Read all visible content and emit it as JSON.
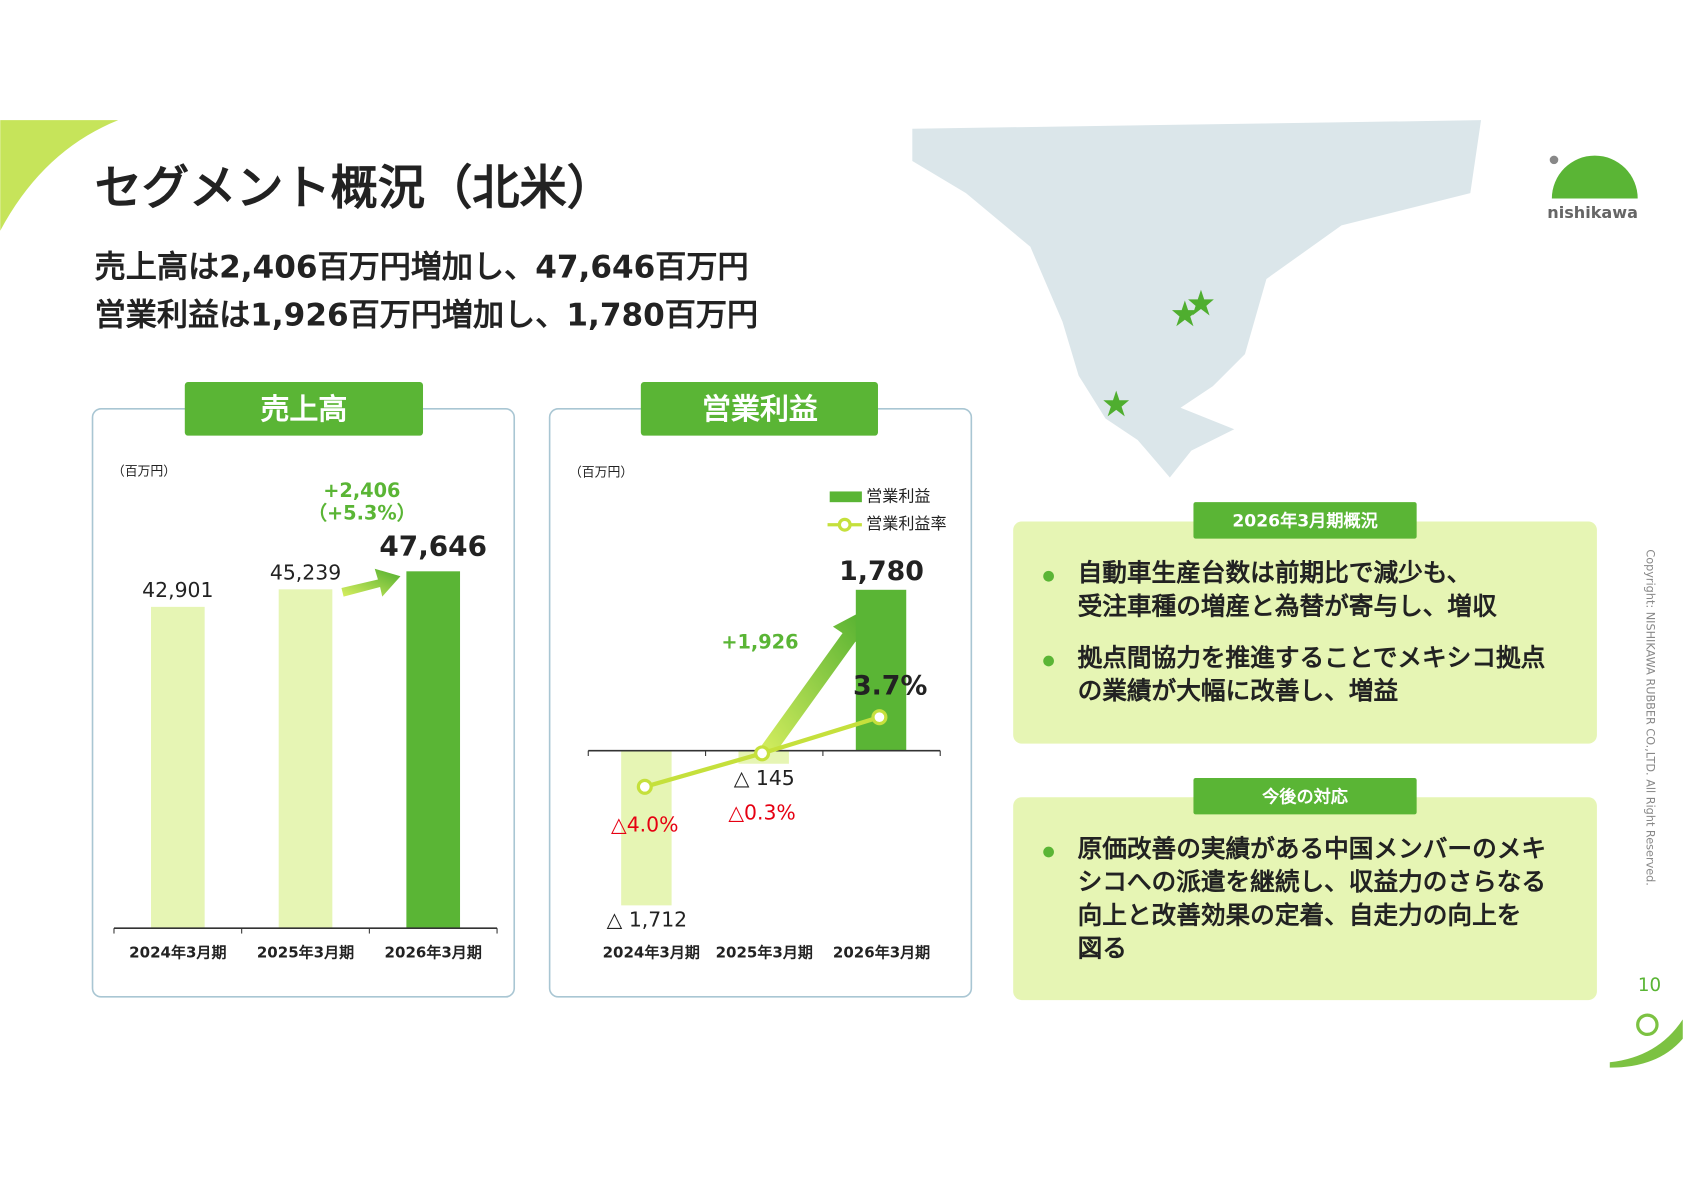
{
  "slide": {
    "title": "セグメント概況（北米）",
    "subtitle": [
      "売上高は2,406百万円増加し、47,646百万円",
      "営業利益は1,926百万円増加し、1,780百万円"
    ],
    "logo": "nishikawa",
    "copyright": "Copyright: NISHIKAWA RUBBER CO.,LTD. All Right Reserved.",
    "page_number": "10"
  },
  "panels": [
    {
      "header": "2026年3月期概況",
      "bullets": [
        [
          "自動車生産台数は前期比で減少も、",
          "受注車種の増産と為替が寄与し、増収"
        ],
        [
          "拠点間協力を推進することでメキシコ拠点",
          "の業績が大幅に改善し、増益"
        ]
      ]
    },
    {
      "header": "今後の対応",
      "bullets": [
        [
          "原価改善の実績がある中国メンバーのメキ",
          "シコへの派遣を継続し、収益力のさらなる",
          "向上と改善効果の定着、自走力の向上を",
          "図る"
        ]
      ]
    }
  ],
  "chart_data": [
    {
      "type": "bar",
      "title": "売上高",
      "unit_label": "（百万円）",
      "categories": [
        "2024年3月期",
        "2025年3月期",
        "2026年3月期"
      ],
      "values": [
        42901,
        45239,
        47646
      ],
      "value_labels": [
        "42,901",
        "45,239",
        "47,646"
      ],
      "colors": [
        "#e6f5b4",
        "#e6f5b4",
        "#5ab535"
      ],
      "ylim": [
        0,
        50000
      ],
      "annotations": [
        "+2,406",
        "（+5.3%）"
      ]
    },
    {
      "type": "bar_line",
      "title": "営業利益",
      "unit_label": "（百万円）",
      "categories": [
        "2024年3月期",
        "2025年3月期",
        "2026年3月期"
      ],
      "series": [
        {
          "name": "営業利益",
          "color": "#5ab535",
          "colors": [
            "#e6f5b4",
            "#e6f5b4",
            "#5ab535"
          ],
          "values": [
            -1712,
            -145,
            1780
          ],
          "value_labels": [
            "△ 1,712",
            "△ 145",
            "1,780"
          ]
        },
        {
          "name": "営業利益率",
          "color": "#c5e03c",
          "axis": "y2",
          "negative_label_color": "#e60012",
          "values": [
            -4.0,
            -0.3,
            3.7
          ],
          "value_labels": [
            "△4.0%",
            "△0.3%",
            "3.7%"
          ]
        }
      ],
      "ylim": [
        -2000,
        2500
      ],
      "y2lim": [
        -20,
        25
      ],
      "annotations": [
        "+1,926"
      ]
    }
  ]
}
